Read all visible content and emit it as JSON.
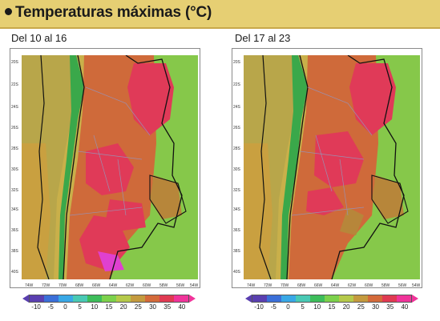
{
  "header": {
    "title": "Temperaturas máximas (°C)"
  },
  "panels": [
    {
      "title": "Del 10 al 16"
    },
    {
      "title": "Del 17 al 23"
    }
  ],
  "y_ticks": [
    "20S",
    "22S",
    "24S",
    "26S",
    "28S",
    "30S",
    "32S",
    "34S",
    "36S",
    "38S",
    "40S"
  ],
  "x_ticks": [
    "74W",
    "72W",
    "70W",
    "68W",
    "66W",
    "64W",
    "62W",
    "60W",
    "58W",
    "56W",
    "54W"
  ],
  "colorbar": {
    "labels": [
      "-10",
      "-5",
      "0",
      "5",
      "10",
      "15",
      "20",
      "25",
      "30",
      "35",
      "40"
    ],
    "colors": [
      "#5a3fb0",
      "#3b6fd8",
      "#39a8e6",
      "#49c9b4",
      "#3dbd5a",
      "#7cd14b",
      "#b5c94a",
      "#c49a3e",
      "#d46a3a",
      "#e03a52",
      "#f0349a"
    ]
  },
  "map_colors": {
    "ocean_west": "#c9b04a",
    "ocean_green": "#86c84a",
    "andes": "#3aa84a",
    "land_orange": "#cf6a3a",
    "land_red": "#e03a58",
    "land_brown": "#b7863a",
    "hot_magenta": "#e040d0"
  }
}
